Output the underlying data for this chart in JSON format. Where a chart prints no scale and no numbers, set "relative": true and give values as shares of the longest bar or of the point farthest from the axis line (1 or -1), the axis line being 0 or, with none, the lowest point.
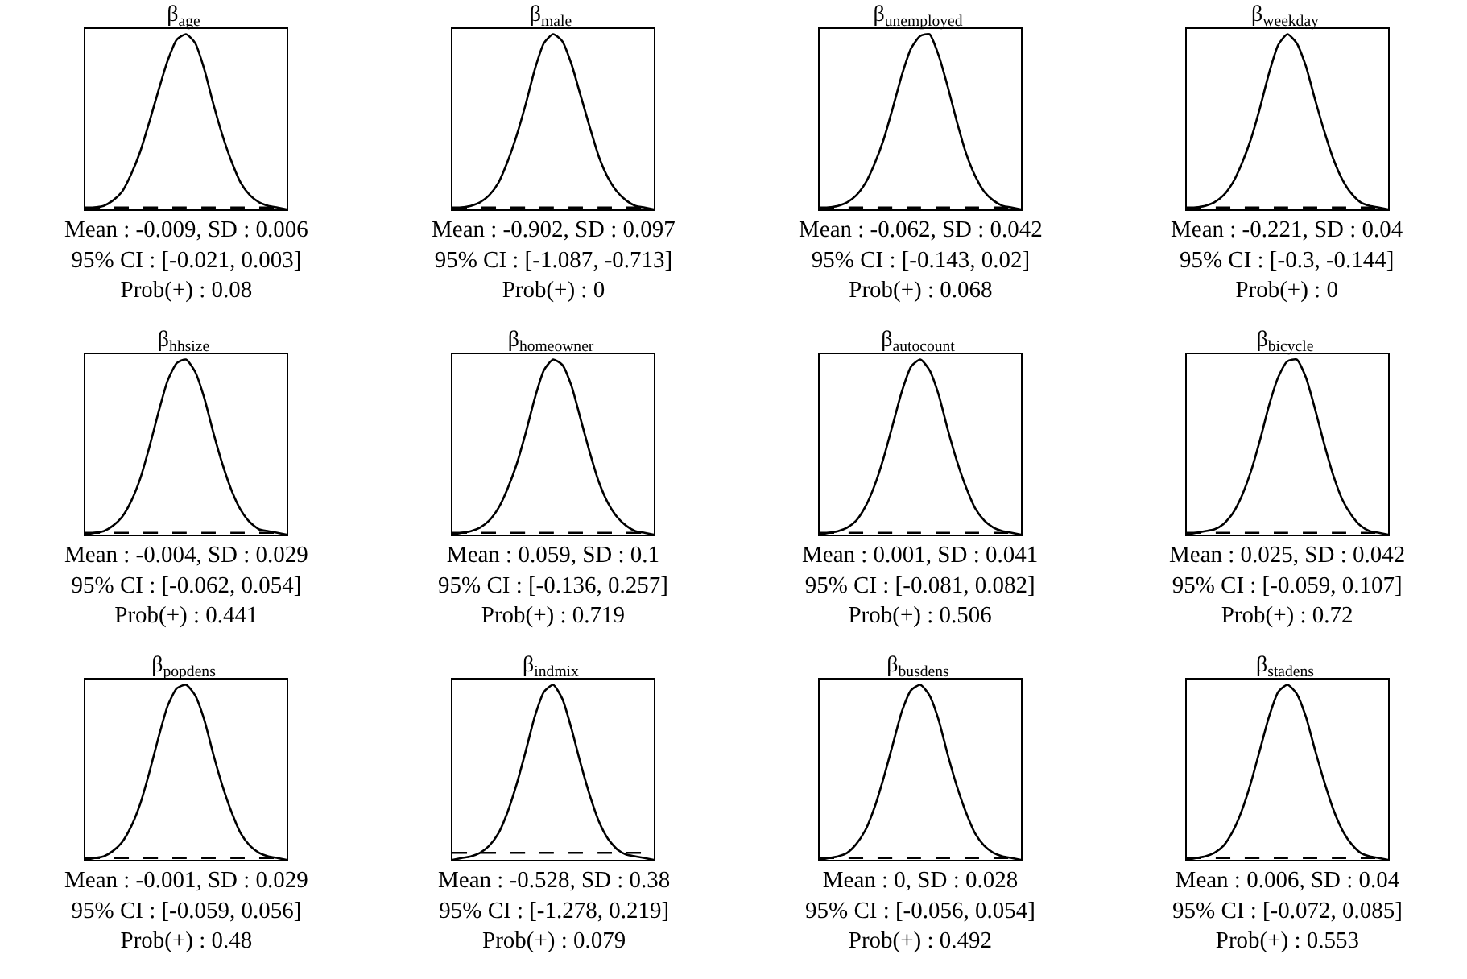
{
  "chart_data": [
    {
      "type": "line",
      "relative": true,
      "title": "β$_{age}$",
      "categories": [
        null,
        null,
        null,
        null,
        null,
        null,
        null,
        null,
        null,
        null,
        null,
        null,
        null,
        null,
        null,
        null,
        null,
        null,
        null,
        null,
        null,
        null,
        null
      ],
      "series": [
        {
          "color": "#000000",
          "line_style": "solid",
          "values": [
            0,
            0.01,
            0.02,
            0.05,
            0.1,
            0.2,
            0.33,
            0.5,
            0.68,
            0.85,
            0.97,
            1,
            0.95,
            0.8,
            0.6,
            0.42,
            0.27,
            0.15,
            0.08,
            0.04,
            0.02,
            0.01,
            0
          ]
        },
        {
          "color": "#000000",
          "line_style": "dashed",
          "values": [
            0.01,
            0.01,
            0.01,
            0.01,
            0.01,
            0.01,
            0.01,
            0.01,
            0.01,
            0.01,
            0.01,
            0.01,
            0.01,
            0.01,
            0.01,
            0.01,
            0.01,
            0.01,
            0.01,
            0.01,
            0.01,
            0.01,
            0.01
          ]
        }
      ],
      "annotations": [
        "Mean : -0.009, SD : 0.006",
        "95% CI : [-0.021, 0.003]",
        "Prob(+) : 0.08"
      ]
    },
    {
      "type": "line",
      "relative": true,
      "title": "β$_{male}$",
      "categories": [
        null,
        null,
        null,
        null,
        null,
        null,
        null,
        null,
        null,
        null,
        null,
        null,
        null,
        null,
        null,
        null,
        null,
        null,
        null,
        null,
        null,
        null,
        null
      ],
      "series": [
        {
          "color": "#000000",
          "line_style": "solid",
          "values": [
            0,
            0.01,
            0.02,
            0.04,
            0.08,
            0.15,
            0.27,
            0.42,
            0.6,
            0.8,
            0.95,
            1,
            0.96,
            0.83,
            0.65,
            0.47,
            0.3,
            0.18,
            0.1,
            0.05,
            0.02,
            0.01,
            0
          ]
        },
        {
          "color": "#000000",
          "line_style": "dashed",
          "values": [
            0.01,
            0.01,
            0.01,
            0.01,
            0.01,
            0.01,
            0.01,
            0.01,
            0.01,
            0.01,
            0.01,
            0.01,
            0.01,
            0.01,
            0.01,
            0.01,
            0.01,
            0.01,
            0.01,
            0.01,
            0.01,
            0.01,
            0.01
          ]
        }
      ],
      "annotations": [
        "Mean : -0.902, SD : 0.097",
        "95% CI : [-1.087, -0.713]",
        "Prob(+) : 0"
      ]
    },
    {
      "type": "line",
      "relative": true,
      "title": "β$_{unemployed}$",
      "categories": [
        null,
        null,
        null,
        null,
        null,
        null,
        null,
        null,
        null,
        null,
        null,
        null,
        null,
        null,
        null,
        null,
        null,
        null,
        null,
        null,
        null,
        null,
        null
      ],
      "series": [
        {
          "color": "#000000",
          "line_style": "solid",
          "values": [
            0,
            0.01,
            0.02,
            0.04,
            0.08,
            0.15,
            0.26,
            0.4,
            0.58,
            0.77,
            0.92,
            0.99,
            1,
            0.88,
            0.7,
            0.5,
            0.32,
            0.19,
            0.1,
            0.05,
            0.02,
            0.01,
            0
          ]
        },
        {
          "color": "#000000",
          "line_style": "dashed",
          "values": [
            0.01,
            0.01,
            0.01,
            0.01,
            0.01,
            0.01,
            0.01,
            0.01,
            0.01,
            0.01,
            0.01,
            0.01,
            0.01,
            0.01,
            0.01,
            0.01,
            0.01,
            0.01,
            0.01,
            0.01,
            0.01,
            0.01,
            0.01
          ]
        }
      ],
      "annotations": [
        "Mean : -0.062, SD : 0.042",
        "95% CI : [-0.143, 0.02]",
        "Prob(+) : 0.068"
      ]
    },
    {
      "type": "line",
      "relative": true,
      "title": "β$_{weekday}$",
      "categories": [
        null,
        null,
        null,
        null,
        null,
        null,
        null,
        null,
        null,
        null,
        null,
        null,
        null,
        null,
        null,
        null,
        null,
        null,
        null,
        null,
        null,
        null,
        null
      ],
      "series": [
        {
          "color": "#000000",
          "line_style": "solid",
          "values": [
            0,
            0.01,
            0.02,
            0.04,
            0.08,
            0.15,
            0.26,
            0.4,
            0.58,
            0.78,
            0.94,
            1,
            0.95,
            0.82,
            0.63,
            0.45,
            0.29,
            0.17,
            0.09,
            0.04,
            0.02,
            0.01,
            0
          ]
        },
        {
          "color": "#000000",
          "line_style": "dashed",
          "values": [
            0.01,
            0.01,
            0.01,
            0.01,
            0.01,
            0.01,
            0.01,
            0.01,
            0.01,
            0.01,
            0.01,
            0.01,
            0.01,
            0.01,
            0.01,
            0.01,
            0.01,
            0.01,
            0.01,
            0.01,
            0.01,
            0.01,
            0.01
          ]
        }
      ],
      "annotations": [
        "Mean : -0.221, SD : 0.04",
        "95% CI : [-0.3, -0.144]",
        "Prob(+) : 0"
      ]
    },
    {
      "type": "line",
      "relative": true,
      "title": "β$_{hhsize}$",
      "categories": [
        null,
        null,
        null,
        null,
        null,
        null,
        null,
        null,
        null,
        null,
        null,
        null,
        null,
        null,
        null,
        null,
        null,
        null,
        null,
        null,
        null,
        null,
        null
      ],
      "series": [
        {
          "color": "#000000",
          "line_style": "solid",
          "values": [
            0,
            0.01,
            0.02,
            0.05,
            0.1,
            0.19,
            0.32,
            0.5,
            0.7,
            0.88,
            0.98,
            1,
            0.93,
            0.78,
            0.58,
            0.4,
            0.25,
            0.14,
            0.07,
            0.03,
            0.02,
            0.01,
            0
          ]
        },
        {
          "color": "#000000",
          "line_style": "dashed",
          "values": [
            0.01,
            0.01,
            0.01,
            0.01,
            0.01,
            0.01,
            0.01,
            0.01,
            0.01,
            0.01,
            0.01,
            0.01,
            0.01,
            0.01,
            0.01,
            0.01,
            0.01,
            0.01,
            0.01,
            0.01,
            0.01,
            0.01,
            0.01
          ]
        }
      ],
      "annotations": [
        "Mean : -0.004, SD : 0.029",
        "95% CI : [-0.062, 0.054]",
        "Prob(+) : 0.441"
      ]
    },
    {
      "type": "line",
      "relative": true,
      "title": "β$_{homeowner}$",
      "categories": [
        null,
        null,
        null,
        null,
        null,
        null,
        null,
        null,
        null,
        null,
        null,
        null,
        null,
        null,
        null,
        null,
        null,
        null,
        null,
        null,
        null,
        null,
        null
      ],
      "series": [
        {
          "color": "#000000",
          "line_style": "solid",
          "values": [
            0,
            0.01,
            0.02,
            0.04,
            0.08,
            0.15,
            0.26,
            0.4,
            0.58,
            0.78,
            0.94,
            1,
            0.97,
            0.85,
            0.66,
            0.47,
            0.3,
            0.18,
            0.1,
            0.05,
            0.02,
            0.01,
            0
          ]
        },
        {
          "color": "#000000",
          "line_style": "dashed",
          "values": [
            0.01,
            0.01,
            0.01,
            0.01,
            0.01,
            0.01,
            0.01,
            0.01,
            0.01,
            0.01,
            0.01,
            0.01,
            0.01,
            0.01,
            0.01,
            0.01,
            0.01,
            0.01,
            0.01,
            0.01,
            0.01,
            0.01,
            0.01
          ]
        }
      ],
      "annotations": [
        "Mean : 0.059, SD : 0.1",
        "95% CI : [-0.136, 0.257]",
        "Prob(+) : 0.719"
      ]
    },
    {
      "type": "line",
      "relative": true,
      "title": "β$_{autocount}$",
      "categories": [
        null,
        null,
        null,
        null,
        null,
        null,
        null,
        null,
        null,
        null,
        null,
        null,
        null,
        null,
        null,
        null,
        null,
        null,
        null,
        null,
        null,
        null,
        null
      ],
      "series": [
        {
          "color": "#000000",
          "line_style": "solid",
          "values": [
            0,
            0.01,
            0.02,
            0.04,
            0.08,
            0.16,
            0.28,
            0.44,
            0.63,
            0.82,
            0.96,
            1,
            0.94,
            0.8,
            0.6,
            0.42,
            0.27,
            0.15,
            0.08,
            0.04,
            0.02,
            0.01,
            0
          ]
        },
        {
          "color": "#000000",
          "line_style": "dashed",
          "values": [
            0.01,
            0.01,
            0.01,
            0.01,
            0.01,
            0.01,
            0.01,
            0.01,
            0.01,
            0.01,
            0.01,
            0.01,
            0.01,
            0.01,
            0.01,
            0.01,
            0.01,
            0.01,
            0.01,
            0.01,
            0.01,
            0.01,
            0.01
          ]
        }
      ],
      "annotations": [
        "Mean : 0.001, SD : 0.041",
        "95% CI : [-0.081, 0.082]",
        "Prob(+) : 0.506"
      ]
    },
    {
      "type": "line",
      "relative": true,
      "title": "β$_{bicycle}$",
      "categories": [
        null,
        null,
        null,
        null,
        null,
        null,
        null,
        null,
        null,
        null,
        null,
        null,
        null,
        null,
        null,
        null,
        null,
        null,
        null,
        null,
        null,
        null,
        null
      ],
      "series": [
        {
          "color": "#000000",
          "line_style": "solid",
          "values": [
            0,
            0.01,
            0.02,
            0.03,
            0.06,
            0.12,
            0.22,
            0.36,
            0.54,
            0.74,
            0.9,
            0.99,
            1,
            0.9,
            0.72,
            0.52,
            0.34,
            0.2,
            0.11,
            0.05,
            0.02,
            0.01,
            0
          ]
        },
        {
          "color": "#000000",
          "line_style": "dashed",
          "values": [
            0.01,
            0.01,
            0.01,
            0.01,
            0.01,
            0.01,
            0.01,
            0.01,
            0.01,
            0.01,
            0.01,
            0.01,
            0.01,
            0.01,
            0.01,
            0.01,
            0.01,
            0.01,
            0.01,
            0.01,
            0.01,
            0.01,
            0.01
          ]
        }
      ],
      "annotations": [
        "Mean : 0.025, SD : 0.042",
        "95% CI : [-0.059, 0.107]",
        "Prob(+) : 0.72"
      ]
    },
    {
      "type": "line",
      "relative": true,
      "title": "β$_{popdens}$",
      "categories": [
        null,
        null,
        null,
        null,
        null,
        null,
        null,
        null,
        null,
        null,
        null,
        null,
        null,
        null,
        null,
        null,
        null,
        null,
        null,
        null,
        null,
        null,
        null
      ],
      "series": [
        {
          "color": "#000000",
          "line_style": "solid",
          "values": [
            0,
            0.01,
            0.02,
            0.05,
            0.1,
            0.19,
            0.32,
            0.5,
            0.7,
            0.88,
            0.98,
            1,
            0.94,
            0.8,
            0.6,
            0.42,
            0.27,
            0.15,
            0.08,
            0.04,
            0.02,
            0.01,
            0
          ]
        },
        {
          "color": "#000000",
          "line_style": "dashed",
          "values": [
            0.01,
            0.01,
            0.01,
            0.01,
            0.01,
            0.01,
            0.01,
            0.01,
            0.01,
            0.01,
            0.01,
            0.01,
            0.01,
            0.01,
            0.01,
            0.01,
            0.01,
            0.01,
            0.01,
            0.01,
            0.01,
            0.01,
            0.01
          ]
        }
      ],
      "annotations": [
        "Mean : -0.001, SD : 0.029",
        "95% CI : [-0.059, 0.056]",
        "Prob(+) : 0.48"
      ]
    },
    {
      "type": "line",
      "relative": true,
      "title": "β$_{indmix}$",
      "categories": [
        null,
        null,
        null,
        null,
        null,
        null,
        null,
        null,
        null,
        null,
        null,
        null,
        null,
        null,
        null,
        null,
        null,
        null,
        null,
        null,
        null,
        null,
        null
      ],
      "series": [
        {
          "color": "#000000",
          "line_style": "solid",
          "values": [
            0,
            0.01,
            0.02,
            0.04,
            0.08,
            0.15,
            0.27,
            0.43,
            0.62,
            0.82,
            0.96,
            1,
            0.92,
            0.75,
            0.55,
            0.37,
            0.22,
            0.12,
            0.06,
            0.03,
            0.02,
            0.01,
            0
          ]
        },
        {
          "color": "#000000",
          "line_style": "dashed",
          "values": [
            0.04,
            0.04,
            0.04,
            0.04,
            0.04,
            0.04,
            0.04,
            0.04,
            0.04,
            0.04,
            0.04,
            0.04,
            0.04,
            0.04,
            0.04,
            0.04,
            0.04,
            0.04,
            0.04,
            0.04,
            0.04,
            0.04,
            0.04
          ]
        }
      ],
      "annotations": [
        "Mean : -0.528, SD : 0.38",
        "95% CI : [-1.278, 0.219]",
        "Prob(+) : 0.079"
      ]
    },
    {
      "type": "line",
      "relative": true,
      "title": "β$_{busdens}$",
      "categories": [
        null,
        null,
        null,
        null,
        null,
        null,
        null,
        null,
        null,
        null,
        null,
        null,
        null,
        null,
        null,
        null,
        null,
        null,
        null,
        null,
        null,
        null,
        null
      ],
      "series": [
        {
          "color": "#000000",
          "line_style": "solid",
          "values": [
            0,
            0.01,
            0.02,
            0.04,
            0.09,
            0.17,
            0.3,
            0.47,
            0.66,
            0.85,
            0.97,
            1,
            0.94,
            0.8,
            0.6,
            0.42,
            0.27,
            0.15,
            0.08,
            0.04,
            0.02,
            0.01,
            0
          ]
        },
        {
          "color": "#000000",
          "line_style": "dashed",
          "values": [
            0.01,
            0.01,
            0.01,
            0.01,
            0.01,
            0.01,
            0.01,
            0.01,
            0.01,
            0.01,
            0.01,
            0.01,
            0.01,
            0.01,
            0.01,
            0.01,
            0.01,
            0.01,
            0.01,
            0.01,
            0.01,
            0.01,
            0.01
          ]
        }
      ],
      "annotations": [
        "Mean : 0, SD : 0.028",
        "95% CI : [-0.056, 0.054]",
        "Prob(+) : 0.492"
      ]
    },
    {
      "type": "line",
      "relative": true,
      "title": "β$_{stadens}$",
      "categories": [
        null,
        null,
        null,
        null,
        null,
        null,
        null,
        null,
        null,
        null,
        null,
        null,
        null,
        null,
        null,
        null,
        null,
        null,
        null,
        null,
        null,
        null,
        null
      ],
      "series": [
        {
          "color": "#000000",
          "line_style": "solid",
          "values": [
            0,
            0.01,
            0.02,
            0.04,
            0.08,
            0.16,
            0.28,
            0.44,
            0.63,
            0.82,
            0.96,
            1,
            0.95,
            0.82,
            0.63,
            0.45,
            0.29,
            0.17,
            0.09,
            0.04,
            0.02,
            0.01,
            0
          ]
        },
        {
          "color": "#000000",
          "line_style": "dashed",
          "values": [
            0.01,
            0.01,
            0.01,
            0.01,
            0.01,
            0.01,
            0.01,
            0.01,
            0.01,
            0.01,
            0.01,
            0.01,
            0.01,
            0.01,
            0.01,
            0.01,
            0.01,
            0.01,
            0.01,
            0.01,
            0.01,
            0.01,
            0.01
          ]
        }
      ],
      "annotations": [
        "Mean : 0.006, SD : 0.04",
        "95% CI : [-0.072, 0.085]",
        "Prob(+) : 0.553"
      ]
    }
  ]
}
